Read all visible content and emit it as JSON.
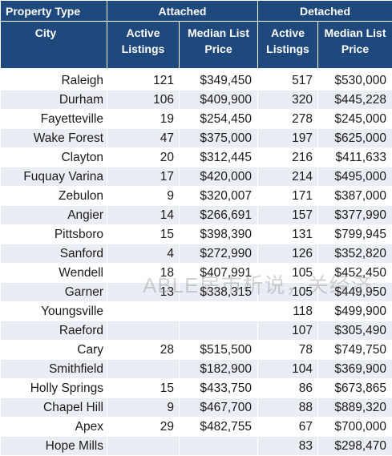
{
  "header": {
    "property_type": "Property Type",
    "attached": "Attached",
    "detached": "Detached",
    "city": "City",
    "active_listings": "Active Listings",
    "median_list_price": "Median List Price"
  },
  "rows": [
    {
      "city": "Raleigh",
      "att_active": "121",
      "att_price": "$349,450",
      "det_active": "517",
      "det_price": "$530,000"
    },
    {
      "city": "Durham",
      "att_active": "106",
      "att_price": "$409,900",
      "det_active": "320",
      "det_price": "$445,228"
    },
    {
      "city": "Fayetteville",
      "att_active": "19",
      "att_price": "$254,450",
      "det_active": "278",
      "det_price": "$245,000"
    },
    {
      "city": "Wake Forest",
      "att_active": "47",
      "att_price": "$375,000",
      "det_active": "197",
      "det_price": "$625,000"
    },
    {
      "city": "Clayton",
      "att_active": "20",
      "att_price": "$312,445",
      "det_active": "216",
      "det_price": "$411,633"
    },
    {
      "city": "Fuquay Varina",
      "att_active": "17",
      "att_price": "$420,000",
      "det_active": "214",
      "det_price": "$495,000"
    },
    {
      "city": "Zebulon",
      "att_active": "9",
      "att_price": "$320,007",
      "det_active": "171",
      "det_price": "$387,000"
    },
    {
      "city": "Angier",
      "att_active": "14",
      "att_price": "$266,691",
      "det_active": "157",
      "det_price": "$377,990"
    },
    {
      "city": "Pittsboro",
      "att_active": "15",
      "att_price": "$398,390",
      "det_active": "131",
      "det_price": "$799,945"
    },
    {
      "city": "Sanford",
      "att_active": "4",
      "att_price": "$272,990",
      "det_active": "126",
      "det_price": "$352,820"
    },
    {
      "city": "Wendell",
      "att_active": "18",
      "att_price": "$407,991",
      "det_active": "105",
      "det_price": "$452,450"
    },
    {
      "city": "Garner",
      "att_active": "13",
      "att_price": "$338,315",
      "det_active": "105",
      "det_price": "$449,950"
    },
    {
      "city": "Youngsville",
      "att_active": "",
      "att_price": "",
      "det_active": "118",
      "det_price": "$499,900"
    },
    {
      "city": "Raeford",
      "att_active": "",
      "att_price": "",
      "det_active": "107",
      "det_price": "$305,490"
    },
    {
      "city": "Cary",
      "att_active": "28",
      "att_price": "$515,500",
      "det_active": "78",
      "det_price": "$749,750"
    },
    {
      "city": "Smithfield",
      "att_active": "",
      "att_price": "$182,900",
      "det_active": "104",
      "det_price": "$369,900"
    },
    {
      "city": "Holly Springs",
      "att_active": "15",
      "att_price": "$433,750",
      "det_active": "86",
      "det_price": "$673,865"
    },
    {
      "city": "Chapel Hill",
      "att_active": "9",
      "att_price": "$467,700",
      "det_active": "88",
      "det_price": "$889,320"
    },
    {
      "city": "Apex",
      "att_active": "29",
      "att_price": "$482,755",
      "det_active": "67",
      "det_price": "$700,000"
    },
    {
      "city": "Hope Mills",
      "att_active": "",
      "att_price": "",
      "det_active": "83",
      "det_price": "$298,470"
    }
  ],
  "watermark": "ABLE房市析说，关经济"
}
